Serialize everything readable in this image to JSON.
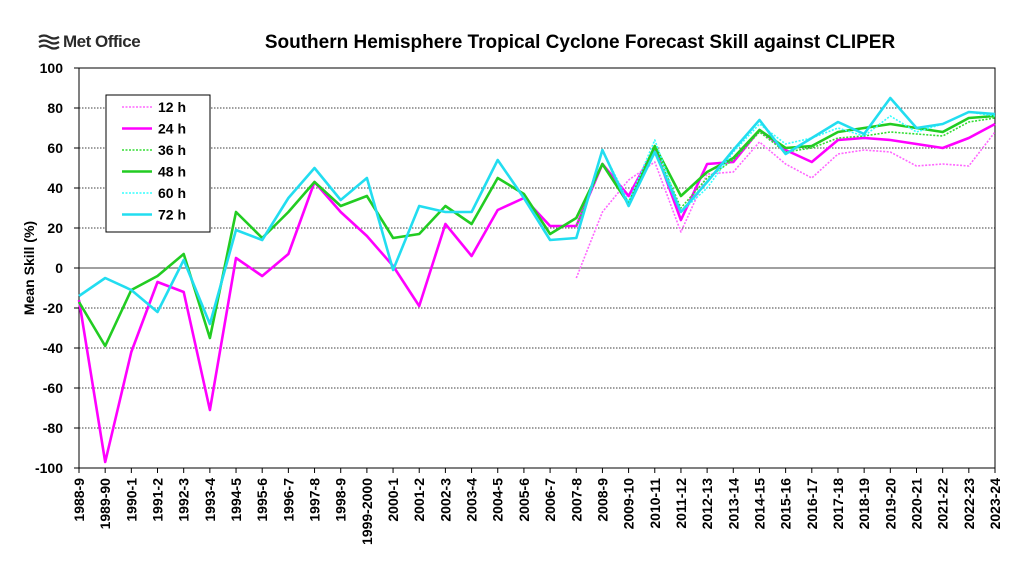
{
  "logo": {
    "text": "Met Office"
  },
  "chart_data": {
    "type": "line",
    "title": "Southern Hemisphere Tropical Cyclone Forecast Skill against CLIPER",
    "xlabel": "",
    "ylabel": "Mean Skill (%)",
    "ylim": [
      -100,
      100
    ],
    "yticks": [
      -100,
      -80,
      -60,
      -40,
      -20,
      0,
      20,
      40,
      60,
      80,
      100
    ],
    "grid": true,
    "legend_position": "top-left",
    "categories": [
      "1988-9",
      "1989-90",
      "1990-1",
      "1991-2",
      "1992-3",
      "1993-4",
      "1994-5",
      "1995-6",
      "1996-7",
      "1997-8",
      "1998-9",
      "1999-2000",
      "2000-1",
      "2001-2",
      "2002-3",
      "2003-4",
      "2004-5",
      "2005-6",
      "2006-7",
      "2007-8",
      "2008-9",
      "2009-10",
      "2010-11",
      "2011-12",
      "2012-13",
      "2013-14",
      "2014-15",
      "2015-16",
      "2016-17",
      "2017-18",
      "2018-19",
      "2019-20",
      "2020-21",
      "2021-22",
      "2022-23",
      "2023-24"
    ],
    "series": [
      {
        "name": "12 h",
        "color": "#ff66ff",
        "style": "dotted",
        "values": [
          null,
          null,
          null,
          null,
          null,
          null,
          null,
          null,
          null,
          null,
          null,
          null,
          null,
          null,
          null,
          null,
          null,
          null,
          null,
          -5,
          28,
          44,
          53,
          18,
          47,
          48,
          63,
          52,
          45,
          57,
          59,
          58,
          51,
          52,
          51,
          68
        ]
      },
      {
        "name": "24 h",
        "color": "#ff00ff",
        "style": "solid",
        "values": [
          -16,
          -97,
          -42,
          -7,
          -12,
          -71,
          5,
          -4,
          7,
          43,
          28,
          16,
          1,
          -19,
          22,
          6,
          29,
          35,
          21,
          21,
          52,
          36,
          60,
          24,
          52,
          53,
          69,
          59,
          53,
          64,
          65,
          64,
          62,
          60,
          65,
          72
        ]
      },
      {
        "name": "36 h",
        "color": "#33dd33",
        "style": "dotted",
        "values": [
          null,
          null,
          null,
          null,
          null,
          null,
          null,
          null,
          null,
          null,
          null,
          null,
          null,
          null,
          null,
          null,
          null,
          null,
          null,
          21,
          52,
          33,
          60,
          30,
          45,
          54,
          68,
          58,
          60,
          65,
          66,
          68,
          67,
          66,
          73,
          75
        ]
      },
      {
        "name": "48 h",
        "color": "#22cc22",
        "style": "solid",
        "values": [
          -17,
          -39,
          -11,
          -4,
          7,
          -35,
          28,
          15,
          28,
          43,
          31,
          36,
          15,
          17,
          31,
          22,
          45,
          37,
          17,
          25,
          52,
          32,
          61,
          36,
          48,
          55,
          69,
          60,
          61,
          68,
          70,
          72,
          70,
          68,
          75,
          76
        ]
      },
      {
        "name": "60 h",
        "color": "#33ffff",
        "style": "dotted",
        "values": [
          null,
          null,
          null,
          null,
          null,
          null,
          null,
          null,
          null,
          null,
          null,
          null,
          null,
          null,
          null,
          null,
          null,
          null,
          null,
          15,
          59,
          33,
          64,
          28,
          40,
          58,
          72,
          62,
          65,
          70,
          66,
          76,
          68,
          72,
          78,
          76
        ]
      },
      {
        "name": "72 h",
        "color": "#22ddf0",
        "style": "solid",
        "values": [
          -14,
          -5,
          -11,
          -22,
          4,
          -28,
          19,
          14,
          35,
          50,
          34,
          45,
          -1,
          31,
          28,
          28,
          54,
          35,
          14,
          15,
          59,
          31,
          58,
          28,
          43,
          59,
          74,
          57,
          65,
          73,
          67,
          85,
          70,
          72,
          78,
          77
        ]
      }
    ]
  }
}
